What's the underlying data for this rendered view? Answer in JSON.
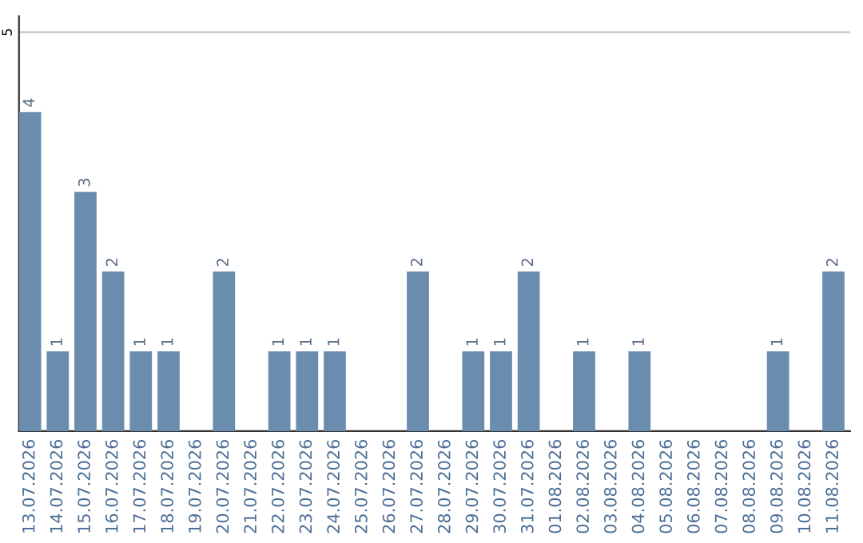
{
  "chart_data": {
    "type": "bar",
    "categories": [
      "13.07.2026",
      "14.07.2026",
      "15.07.2026",
      "16.07.2026",
      "17.07.2026",
      "18.07.2026",
      "19.07.2026",
      "20.07.2026",
      "21.07.2026",
      "22.07.2026",
      "23.07.2026",
      "24.07.2026",
      "25.07.2026",
      "26.07.2026",
      "27.07.2026",
      "28.07.2026",
      "29.07.2026",
      "30.07.2026",
      "31.07.2026",
      "01.08.2026",
      "02.08.2026",
      "03.08.2026",
      "04.08.2026",
      "05.08.2026",
      "06.08.2026",
      "07.08.2026",
      "08.08.2026",
      "09.08.2026",
      "10.08.2026",
      "11.08.2026"
    ],
    "values": [
      4,
      1,
      3,
      2,
      1,
      1,
      0,
      2,
      0,
      1,
      1,
      1,
      0,
      0,
      2,
      0,
      1,
      1,
      2,
      0,
      1,
      0,
      1,
      0,
      0,
      0,
      0,
      1,
      0,
      2
    ],
    "value_labels": [
      "4",
      "1",
      "3",
      "2",
      "1",
      "1",
      null,
      "2",
      null,
      "1",
      "1",
      "1",
      null,
      null,
      "2",
      null,
      "1",
      "1",
      "2",
      null,
      "1",
      null,
      "1",
      null,
      null,
      null,
      null,
      "1",
      null,
      "2"
    ],
    "color": "#6a8caf",
    "ylim": [
      0,
      5.2
    ],
    "yticks": [
      5
    ],
    "grid": "y"
  }
}
